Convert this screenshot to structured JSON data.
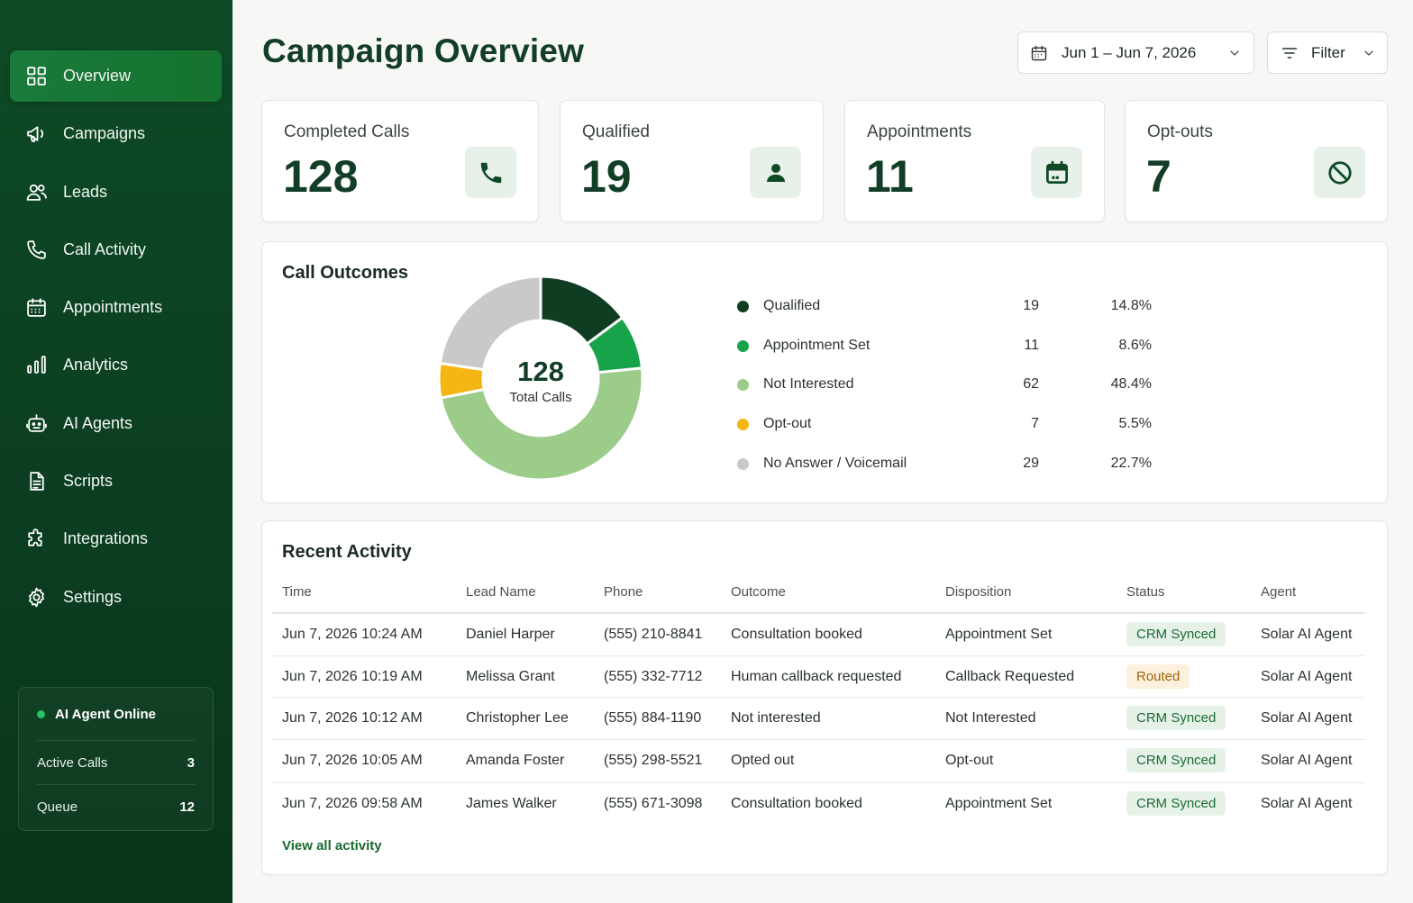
{
  "sidebar": {
    "items": [
      {
        "label": "Overview",
        "icon": "grid-icon",
        "active": true
      },
      {
        "label": "Campaigns",
        "icon": "megaphone-icon"
      },
      {
        "label": "Leads",
        "icon": "users-icon"
      },
      {
        "label": "Call Activity",
        "icon": "phone-icon"
      },
      {
        "label": "Appointments",
        "icon": "calendar-icon"
      },
      {
        "label": "Analytics",
        "icon": "bar-chart-icon"
      },
      {
        "label": "AI Agents",
        "icon": "robot-icon"
      },
      {
        "label": "Scripts",
        "icon": "document-icon"
      },
      {
        "label": "Integrations",
        "icon": "puzzle-icon"
      },
      {
        "label": "Settings",
        "icon": "gear-icon"
      }
    ],
    "agent_status": {
      "title": "AI Agent Online",
      "active_calls_label": "Active Calls",
      "active_calls_value": "3",
      "queue_label": "Queue",
      "queue_value": "12"
    }
  },
  "header": {
    "title": "Campaign Overview",
    "date_range": "Jun 1 – Jun 7, 2026",
    "filter_label": "Filter"
  },
  "stats": {
    "completed": {
      "label": "Completed Calls",
      "value": "128"
    },
    "qualified": {
      "label": "Qualified",
      "value": "19"
    },
    "appointments": {
      "label": "Appointments",
      "value": "11"
    },
    "optouts": {
      "label": "Opt-outs",
      "value": "7"
    }
  },
  "outcomes": {
    "title": "Call Outcomes",
    "center_value": "128",
    "center_label": "Total Calls",
    "rows": [
      {
        "name": "Qualified",
        "count": "19",
        "pct": "14.8%",
        "color": "#0f3d22"
      },
      {
        "name": "Appointment Set",
        "count": "11",
        "pct": "8.6%",
        "color": "#16a34a"
      },
      {
        "name": "Not Interested",
        "count": "62",
        "pct": "48.4%",
        "color": "#9ccc8a"
      },
      {
        "name": "Opt-out",
        "count": "7",
        "pct": "5.5%",
        "color": "#f5b614"
      },
      {
        "name": "No Answer / Voicemail",
        "count": "29",
        "pct": "22.7%",
        "color": "#c8c9c8"
      }
    ]
  },
  "chart_data": {
    "type": "pie",
    "categories": [
      "Qualified",
      "Appointment Set",
      "Not Interested",
      "Opt-out",
      "No Answer / Voicemail"
    ],
    "values": [
      19,
      11,
      62,
      7,
      29
    ],
    "colors": [
      "#0f3d22",
      "#16a34a",
      "#9ccc8a",
      "#f5b614",
      "#c8c9c8"
    ],
    "title": "Call Outcomes",
    "center_label": "Total Calls",
    "total": 128
  },
  "activity": {
    "title": "Recent Activity",
    "headers": {
      "time": "Time",
      "lead": "Lead Name",
      "phone": "Phone",
      "outcome": "Outcome",
      "disposition": "Disposition",
      "status": "Status",
      "agent": "Agent"
    },
    "rows": [
      {
        "time": "Jun 7, 2026 10:24 AM",
        "lead": "Daniel Harper",
        "phone": "(555) 210-8841",
        "outcome": "Consultation booked",
        "disposition": "Appointment Set",
        "status": "CRM Synced",
        "status_type": "green",
        "agent": "Solar AI Agent"
      },
      {
        "time": "Jun 7, 2026 10:19 AM",
        "lead": "Melissa Grant",
        "phone": "(555) 332-7712",
        "outcome": "Human callback requested",
        "disposition": "Callback Requested",
        "status": "Routed",
        "status_type": "amber",
        "agent": "Solar AI Agent"
      },
      {
        "time": "Jun 7, 2026 10:12 AM",
        "lead": "Christopher Lee",
        "phone": "(555) 884-1190",
        "outcome": "Not interested",
        "disposition": "Not Interested",
        "status": "CRM Synced",
        "status_type": "green",
        "agent": "Solar AI Agent"
      },
      {
        "time": "Jun 7, 2026 10:05 AM",
        "lead": "Amanda Foster",
        "phone": "(555) 298-5521",
        "outcome": "Opted out",
        "disposition": "Opt-out",
        "status": "CRM Synced",
        "status_type": "green",
        "agent": "Solar AI Agent"
      },
      {
        "time": "Jun 7, 2026 09:58 AM",
        "lead": "James Walker",
        "phone": "(555) 671-3098",
        "outcome": "Consultation booked",
        "disposition": "Appointment Set",
        "status": "CRM Synced",
        "status_type": "green",
        "agent": "Solar AI Agent"
      }
    ],
    "view_all": "View all activity"
  }
}
